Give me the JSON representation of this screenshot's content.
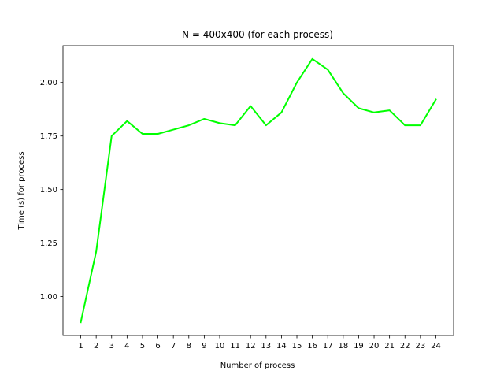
{
  "chart_data": {
    "type": "line",
    "title": "N = 400x400 (for each process)",
    "xlabel": "Number of process",
    "ylabel": "Time (s) for process",
    "x": [
      1,
      2,
      3,
      4,
      5,
      6,
      7,
      8,
      9,
      10,
      11,
      12,
      13,
      14,
      15,
      16,
      17,
      18,
      19,
      20,
      21,
      22,
      23,
      24
    ],
    "series": [
      {
        "values": [
          0.88,
          1.21,
          1.75,
          1.82,
          1.76,
          1.76,
          1.78,
          1.8,
          1.83,
          1.81,
          1.8,
          1.89,
          1.8,
          1.86,
          2.0,
          2.11,
          2.06,
          1.95,
          1.88,
          1.86,
          1.87,
          1.8,
          1.8,
          1.92
        ],
        "color": "#00ff00"
      }
    ],
    "xticks": [
      "1",
      "2",
      "3",
      "4",
      "5",
      "6",
      "7",
      "8",
      "9",
      "10",
      "11",
      "12",
      "13",
      "14",
      "15",
      "16",
      "17",
      "18",
      "19",
      "20",
      "21",
      "22",
      "23",
      "24"
    ],
    "yticks": [
      1.0,
      1.25,
      1.5,
      1.75,
      2.0
    ],
    "ytick_labels": [
      "1.00",
      "1.25",
      "1.50",
      "1.75",
      "2.00"
    ],
    "xlim": [
      -0.15,
      25.15
    ],
    "ylim": [
      0.818,
      2.172
    ],
    "grid": false,
    "legend": false
  }
}
